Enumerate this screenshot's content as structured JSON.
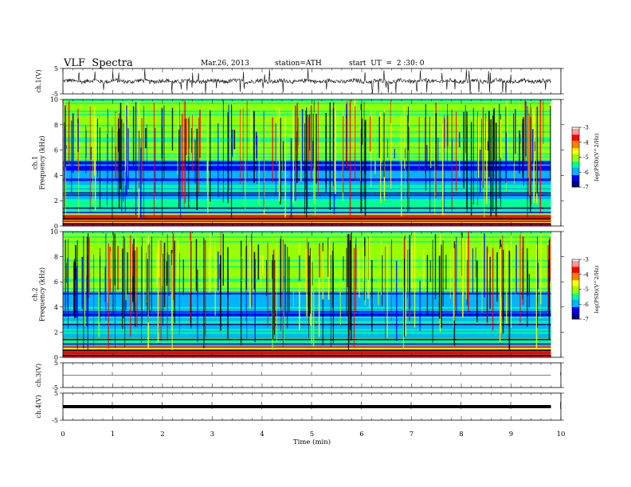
{
  "header": {
    "title": "VLF  Spectra",
    "date": "Mar.26, 2013",
    "station": "station=ATH",
    "start": "start  UT  =  2 :30: 0"
  },
  "colors": {
    "colormap": [
      "#000080",
      "#0000ff",
      "#00b4ff",
      "#00ff96",
      "#96ff00",
      "#ffff00",
      "#ff8000",
      "#ff0000",
      "#ff9696",
      "#ffffff"
    ]
  },
  "chart_data": [
    {
      "type": "line",
      "ylabel": "ch.1(V)",
      "xlim": [
        0,
        10
      ],
      "ylim": [
        -5,
        5
      ],
      "yticks": [
        5,
        -5
      ],
      "description_values": {
        "x_start": 0,
        "x_end": 9.8
      }
    },
    {
      "type": "heatmap",
      "ylabel": "ch.1\nFrequency (kHz)",
      "xlim": [
        0,
        10
      ],
      "ylim": [
        0,
        10
      ],
      "yticks": [
        0,
        2,
        4,
        6,
        8,
        10
      ],
      "colorbar": {
        "label": "log(PSD)(V^2/Hz)",
        "range": [
          -7,
          -3
        ],
        "ticks": [
          -3,
          -4,
          -5,
          -6,
          -7
        ]
      }
    },
    {
      "type": "heatmap",
      "ylabel": "ch.2\nFrequency (kHz)",
      "xlim": [
        0,
        10
      ],
      "ylim": [
        0,
        10
      ],
      "yticks": [
        0,
        2,
        4,
        6,
        8,
        10
      ],
      "colorbar": {
        "label": "log(PSD)(V^2/Hz)",
        "range": [
          -7,
          -3
        ],
        "ticks": [
          -3,
          -4,
          -5,
          -6,
          -7
        ]
      }
    },
    {
      "type": "line",
      "ylabel": "ch.3(V)",
      "xlim": [
        0,
        10
      ],
      "ylim": [
        -5,
        5
      ],
      "yticks": [
        5,
        -5
      ]
    },
    {
      "type": "line",
      "ylabel": "ch.4(V)",
      "xlim": [
        0,
        10
      ],
      "ylim": [
        -5,
        5
      ],
      "yticks": [
        5,
        -5
      ],
      "xlabel": "Time  (min)",
      "xticks": [
        0,
        1,
        2,
        3,
        4,
        5,
        6,
        7,
        8,
        9,
        10
      ]
    }
  ]
}
